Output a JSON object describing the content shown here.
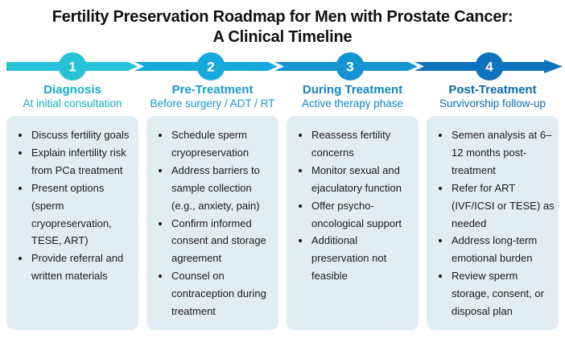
{
  "title": {
    "line1": "Fertility Preservation Roadmap for Men with Prostate Cancer:",
    "line2": "A Clinical Timeline"
  },
  "colors": {
    "card_background": "#e0eef4",
    "bullet_text": "#1b1b1b",
    "title_text": "#111111"
  },
  "stages": [
    {
      "number": "1",
      "name": "Diagnosis",
      "subtitle": "At initial consultation",
      "arrow_color": "#25c2d8",
      "text_color": "#13adc7",
      "bullets": [
        "Discuss fertility goals",
        "Explain infertility risk from PCa treatment",
        "Present options (sperm cryopreservation, TESE, ART)",
        "Provide referral and written materials"
      ]
    },
    {
      "number": "2",
      "name": "Pre-Treatment",
      "subtitle": "Before surgery / ADT / RT",
      "arrow_color": "#17a9dc",
      "text_color": "#1599d3",
      "bullets": [
        "Schedule sperm cryopreservation",
        "Address barriers to sample collection (e.g., anxiety, pain)",
        "Confirm informed consent and storage agreement",
        "Counsel on contraception during treatment"
      ]
    },
    {
      "number": "3",
      "name": "During Treatment",
      "subtitle": "Active therapy phase",
      "arrow_color": "#1494d1",
      "text_color": "#1186c7",
      "bullets": [
        "Reassess fertility concerns",
        "Monitor sexual and ejaculatory function",
        "Offer psycho-oncological support",
        "Additional preservation not feasible"
      ]
    },
    {
      "number": "4",
      "name": "Post-Treatment",
      "subtitle": "Survivorship follow-up",
      "arrow_color": "#0d73bd",
      "text_color": "#0b6ab1",
      "bullets": [
        "Semen analysis at 6–12 months post-treatment",
        "Refer for ART (IVF/ICSI or TESE) as needed",
        "Address long-term emotional burden",
        "Review sperm storage, consent, or disposal plan"
      ]
    }
  ]
}
